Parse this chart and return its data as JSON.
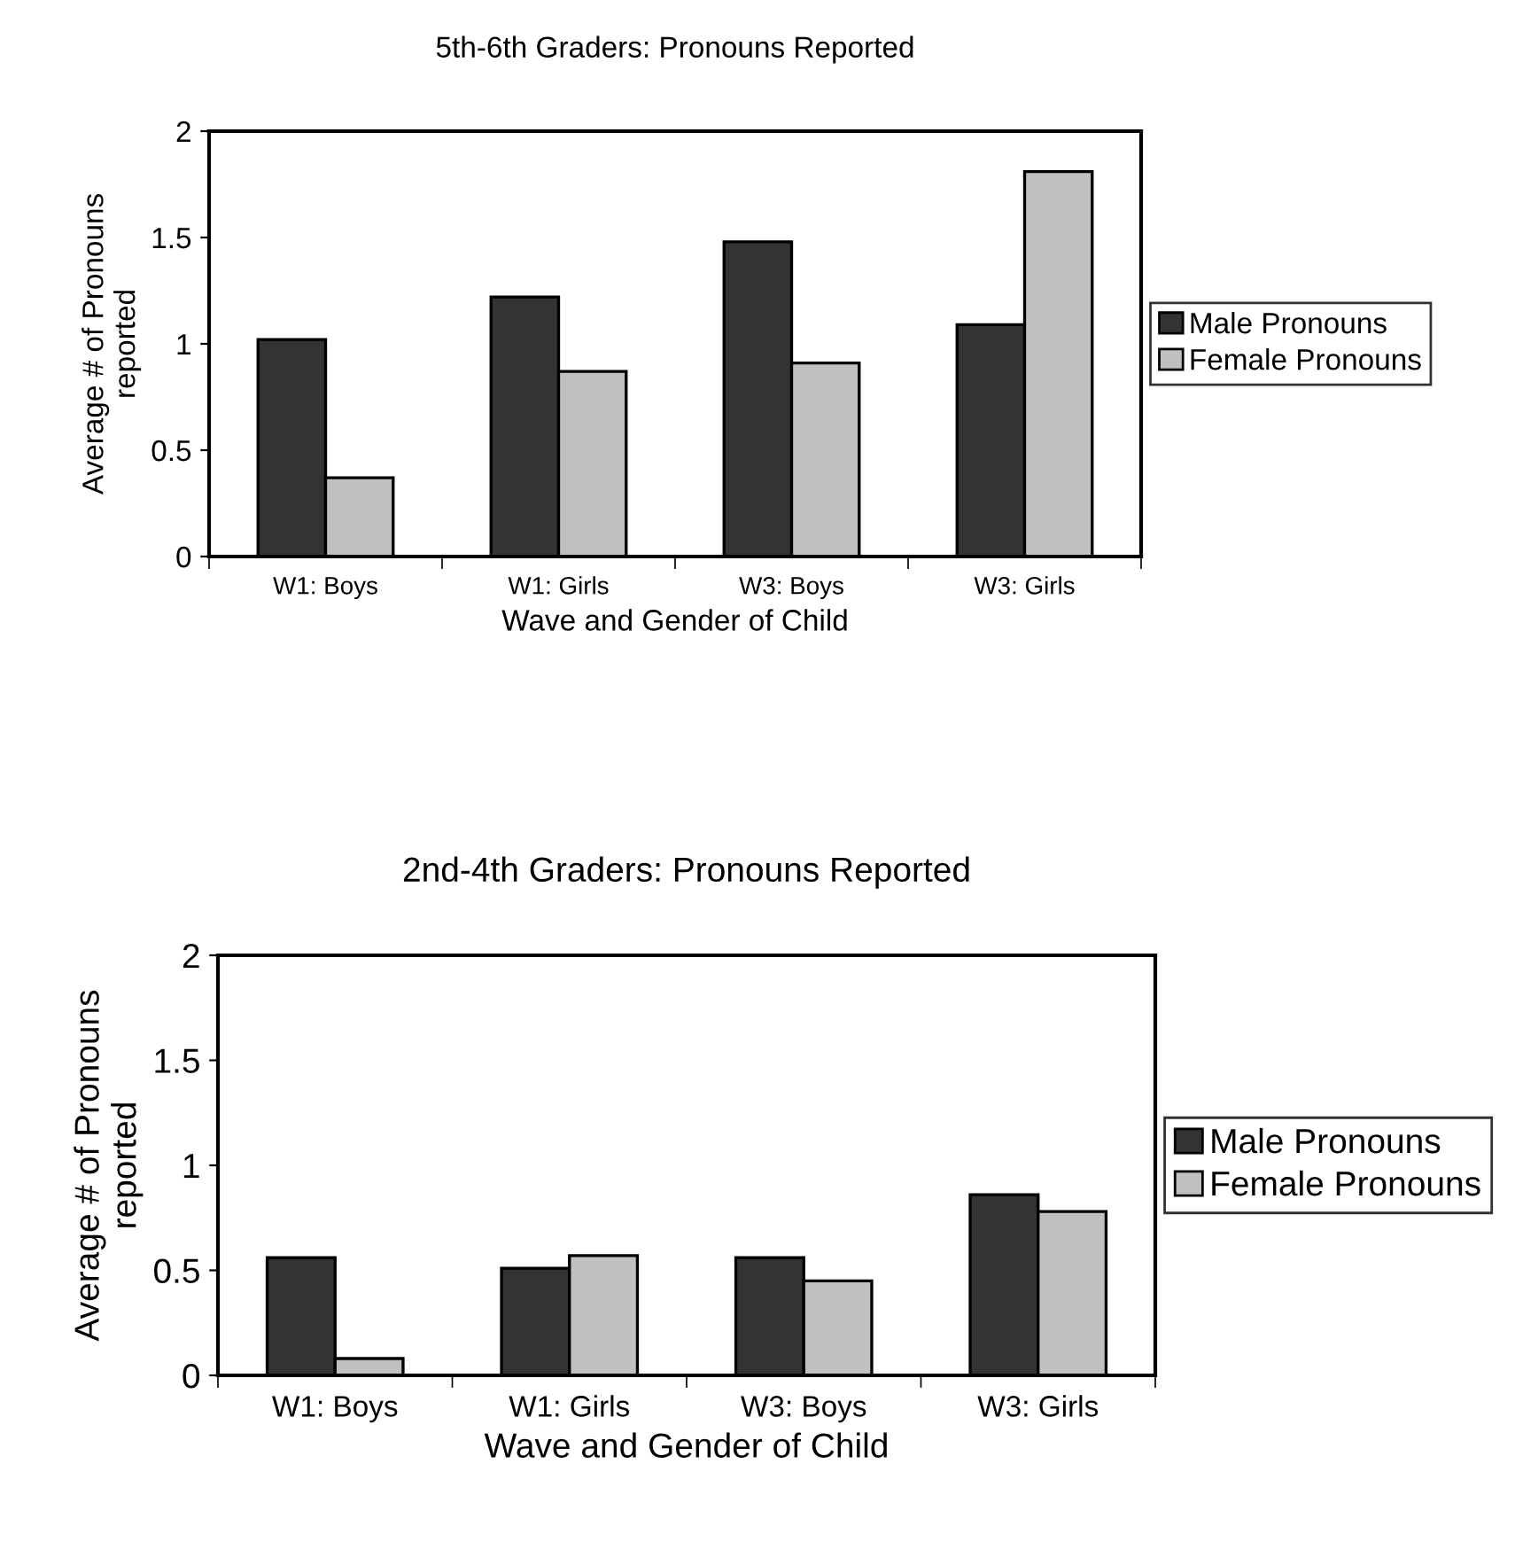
{
  "chart_data": [
    {
      "type": "bar",
      "title": "5th-6th Graders: Pronouns Reported",
      "xlabel": "Wave and Gender of Child",
      "ylabel": "Average # of Pronouns\nreported",
      "categories": [
        "W1: Boys",
        "W1: Girls",
        "W3: Boys",
        "W3: Girls"
      ],
      "series": [
        {
          "name": "Male Pronouns",
          "color": "#333333",
          "values": [
            1.02,
            1.22,
            1.48,
            1.09
          ]
        },
        {
          "name": "Female Pronouns",
          "color": "#c0c0c0",
          "values": [
            0.37,
            0.87,
            0.91,
            1.81
          ]
        }
      ],
      "ylim": [
        0,
        2
      ],
      "yticks": [
        0,
        0.5,
        1,
        1.5,
        2
      ],
      "grid": false,
      "legend": "right"
    },
    {
      "type": "bar",
      "title": "2nd-4th Graders: Pronouns Reported",
      "xlabel": "Wave and Gender of Child",
      "ylabel": "Average # of Pronouns\nreported",
      "categories": [
        "W1: Boys",
        "W1: Girls",
        "W3: Boys",
        "W3: Girls"
      ],
      "series": [
        {
          "name": "Male Pronouns",
          "color": "#333333",
          "values": [
            0.56,
            0.51,
            0.56,
            0.86
          ]
        },
        {
          "name": "Female Pronouns",
          "color": "#c0c0c0",
          "values": [
            0.08,
            0.57,
            0.45,
            0.78
          ]
        }
      ],
      "ylim": [
        0,
        2
      ],
      "yticks": [
        0,
        0.5,
        1,
        1.5,
        2
      ],
      "grid": false,
      "legend": "right"
    }
  ]
}
